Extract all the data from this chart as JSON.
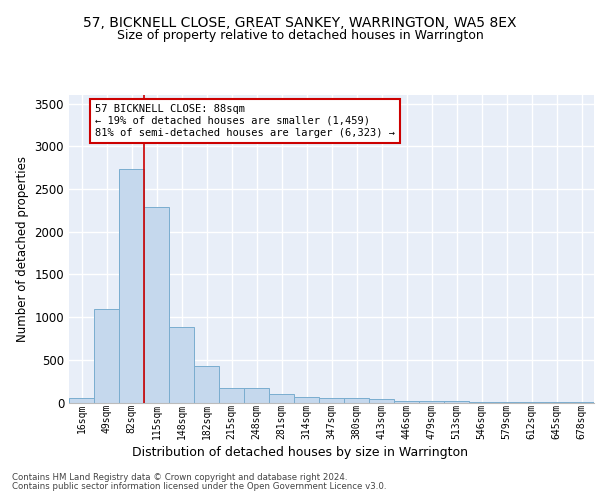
{
  "title": "57, BICKNELL CLOSE, GREAT SANKEY, WARRINGTON, WA5 8EX",
  "subtitle": "Size of property relative to detached houses in Warrington",
  "xlabel": "Distribution of detached houses by size in Warrington",
  "ylabel": "Number of detached properties",
  "bin_labels": [
    "16sqm",
    "49sqm",
    "82sqm",
    "115sqm",
    "148sqm",
    "182sqm",
    "215sqm",
    "248sqm",
    "281sqm",
    "314sqm",
    "347sqm",
    "380sqm",
    "413sqm",
    "446sqm",
    "479sqm",
    "513sqm",
    "546sqm",
    "579sqm",
    "612sqm",
    "645sqm",
    "678sqm"
  ],
  "bar_values": [
    55,
    1095,
    2730,
    2290,
    880,
    430,
    170,
    165,
    95,
    68,
    52,
    48,
    38,
    22,
    18,
    16,
    10,
    8,
    6,
    5,
    4
  ],
  "bar_color": "#c5d8ed",
  "bar_edge_color": "#7aadcf",
  "background_color": "#e8eef8",
  "grid_color": "#ffffff",
  "annotation_text": "57 BICKNELL CLOSE: 88sqm\n← 19% of detached houses are smaller (1,459)\n81% of semi-detached houses are larger (6,323) →",
  "annotation_box_color": "#ffffff",
  "annotation_box_edge": "#cc0000",
  "footer_line1": "Contains HM Land Registry data © Crown copyright and database right 2024.",
  "footer_line2": "Contains public sector information licensed under the Open Government Licence v3.0.",
  "ylim": [
    0,
    3600
  ],
  "yticks": [
    0,
    500,
    1000,
    1500,
    2000,
    2500,
    3000,
    3500
  ]
}
